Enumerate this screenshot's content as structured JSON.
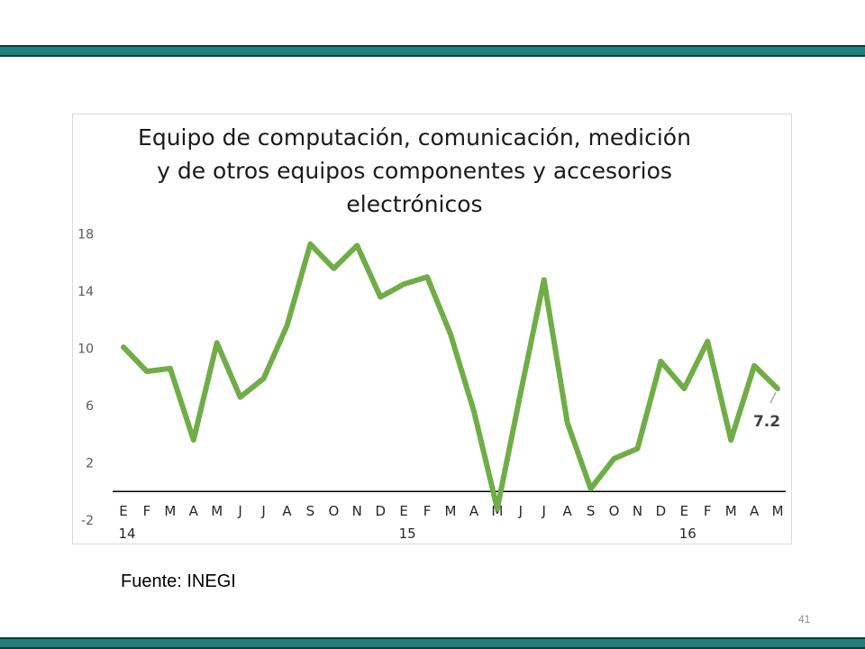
{
  "slide": {
    "source": "Fuente: INEGI",
    "page_number": "41"
  },
  "chart_data": {
    "type": "line",
    "title": "Equipo de computación, comunicación, medición y de otros equipos componentes y accesorios electrónicos",
    "title_lines": [
      "Equipo de computación, comunicación, medición",
      "y de otros equipos componentes y accesorios",
      "electrónicos"
    ],
    "xlabel": "",
    "ylabel": "",
    "categories": [
      "E",
      "F",
      "M",
      "A",
      "M",
      "J",
      "J",
      "A",
      "S",
      "O",
      "N",
      "D",
      "E",
      "F",
      "M",
      "A",
      "M",
      "J",
      "J",
      "A",
      "S",
      "O",
      "N",
      "D",
      "E",
      "F",
      "M",
      "A",
      "M"
    ],
    "year_labels": [
      {
        "index": 0,
        "label": "14"
      },
      {
        "index": 12,
        "label": "15"
      },
      {
        "index": 24,
        "label": "16"
      }
    ],
    "series": [
      {
        "color": "#70ad47",
        "values": [
          10.1,
          8.4,
          8.6,
          3.6,
          10.4,
          6.6,
          7.9,
          11.6,
          17.3,
          15.6,
          17.2,
          13.6,
          14.5,
          15.0,
          11.0,
          5.6,
          -1.2,
          6.9,
          14.8,
          4.8,
          0.2,
          2.3,
          3.0,
          9.1,
          7.2,
          10.5,
          3.6,
          8.8,
          7.2
        ]
      }
    ],
    "ylim": [
      -2,
      20
    ],
    "yticks": [
      -2,
      2,
      6,
      10,
      14,
      18
    ],
    "grid": false,
    "annotation": {
      "index": 28,
      "label": "7.2"
    }
  }
}
